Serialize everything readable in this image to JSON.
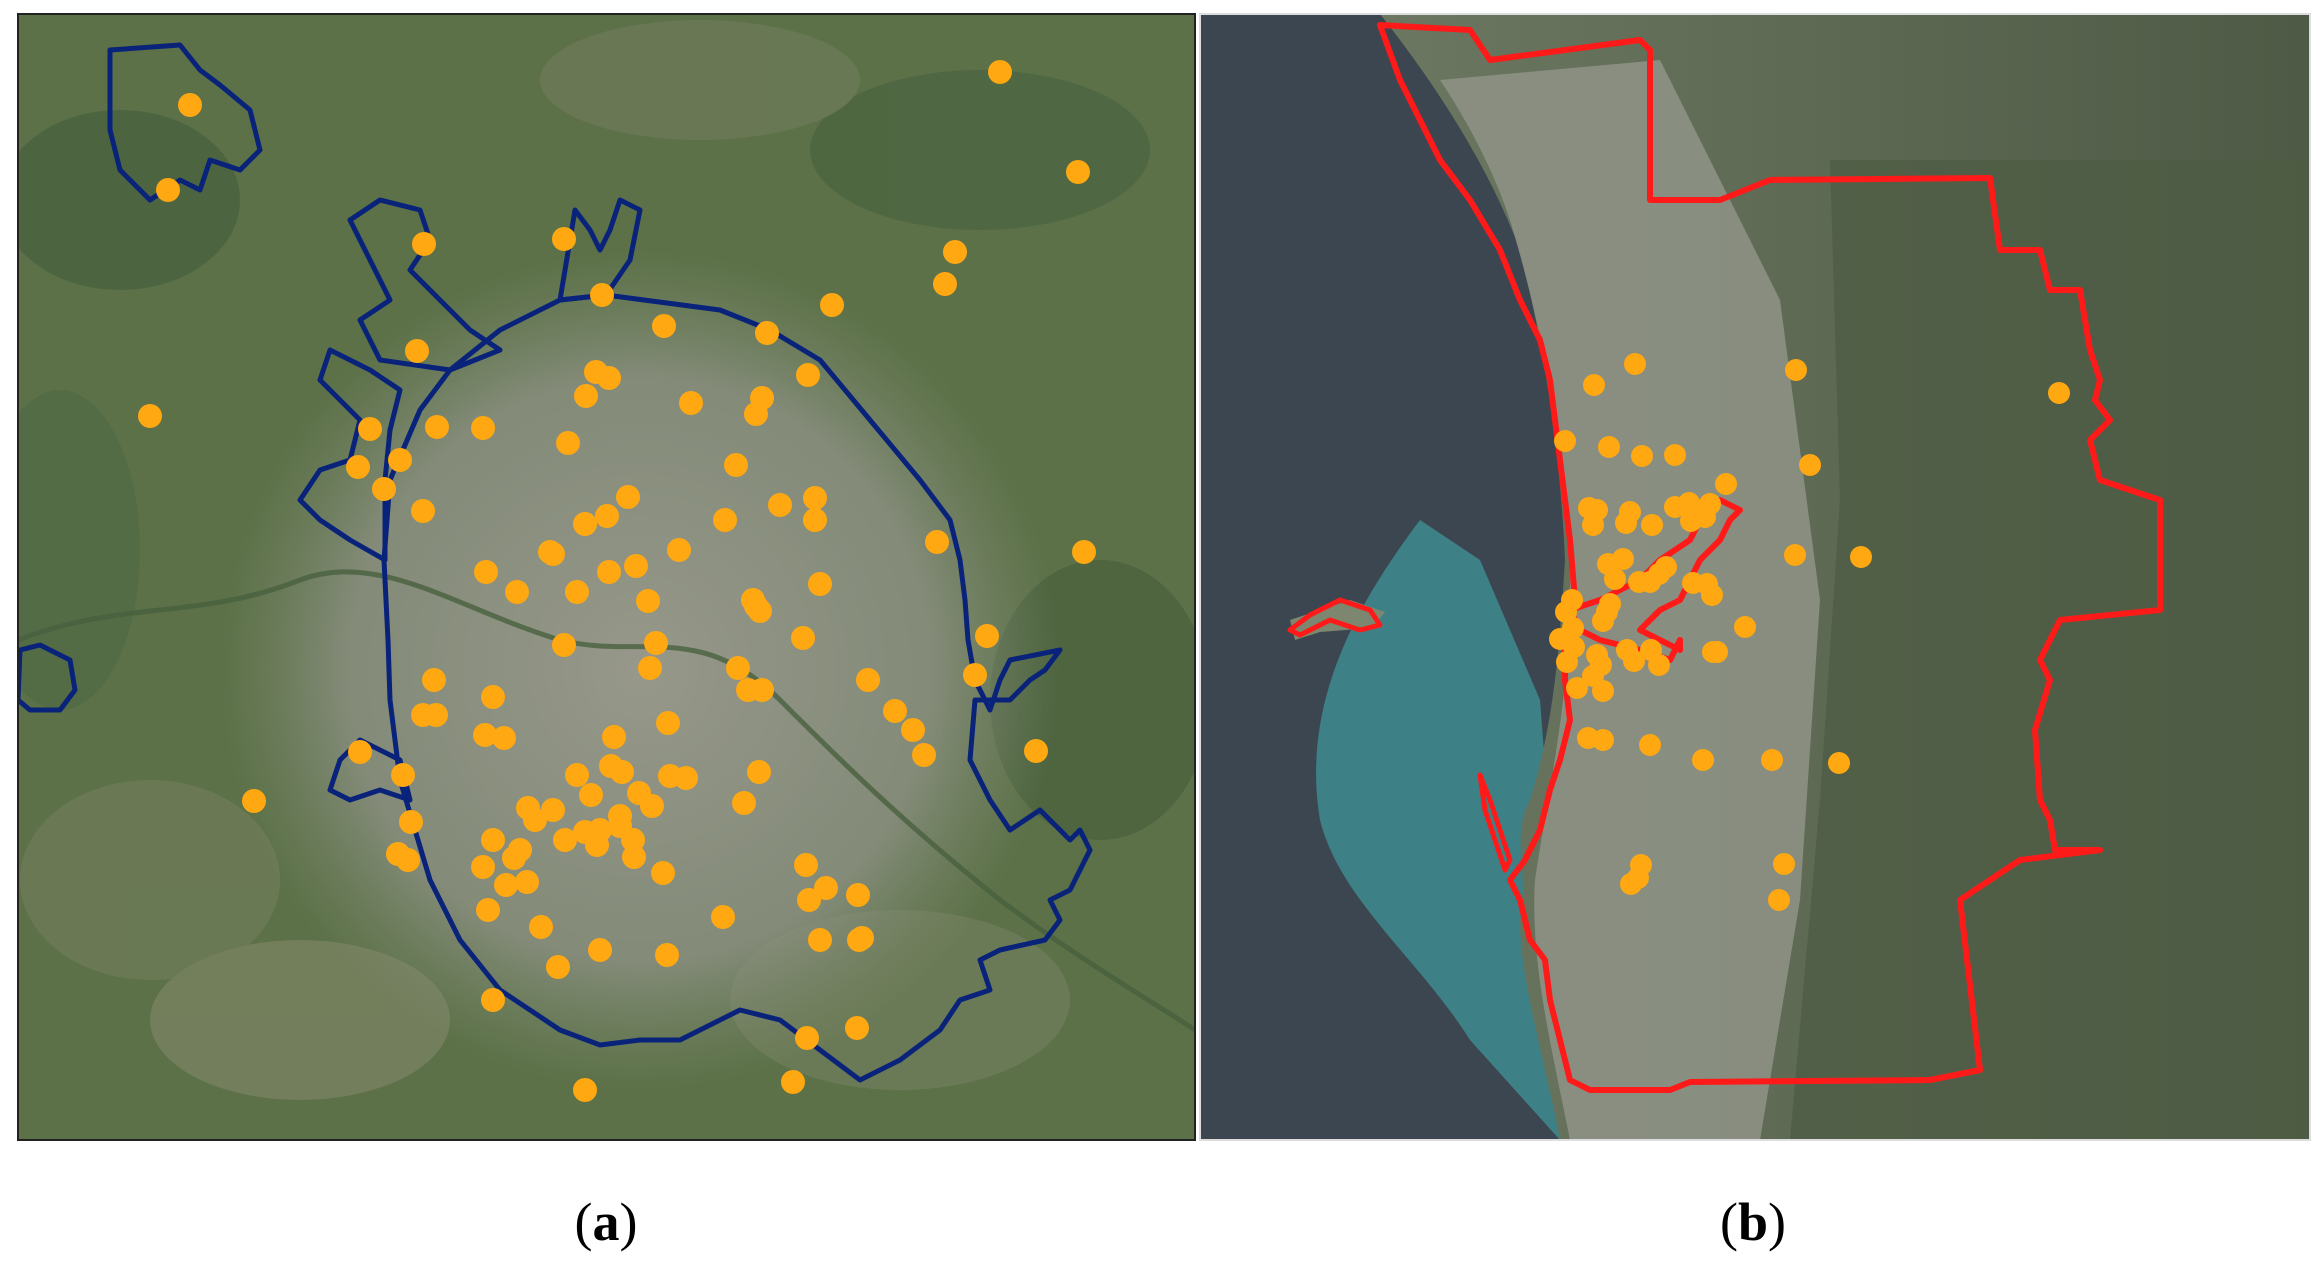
{
  "panels": [
    {
      "id": "a",
      "label_open": "(",
      "label_letter": "a",
      "label_close": ")",
      "boundary_color": "#0a237a",
      "marker_color": "#ffa812",
      "marker_count": 118
    },
    {
      "id": "b",
      "label_open": "(",
      "label_letter": "b",
      "label_close": ")",
      "boundary_color": "#ff1a1a",
      "marker_color": "#ffa812",
      "marker_count": 66
    }
  ],
  "colors": {
    "land_green": "#5c7148",
    "urban_gray": "#8c8e84",
    "sea": "#3c4650",
    "shallow_water": "#3d8c90",
    "forest_dark": "#4f5c44"
  }
}
